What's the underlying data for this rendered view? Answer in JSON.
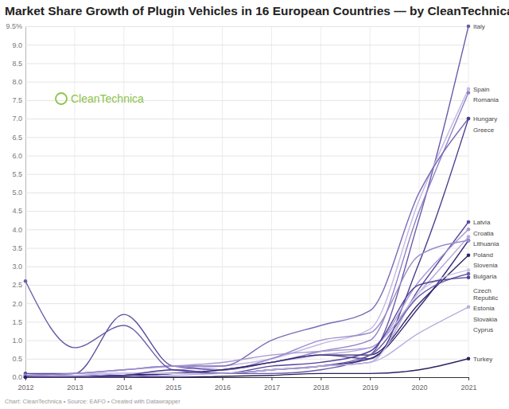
{
  "chart_data": {
    "type": "line",
    "title": "Market Share Growth of Plugin Vehicles in 16 European Countries — by CleanTechnica",
    "source": "Chart: CleanTechnica • Source: EAFO • Created with Datawrapper",
    "annotations": [
      "CleanTechnica"
    ],
    "x": [
      2012,
      2013,
      2014,
      2015,
      2016,
      2017,
      2018,
      2019,
      2020,
      2021
    ],
    "xlim": [
      2012,
      2021
    ],
    "xticks": [
      2012,
      2013,
      2014,
      2015,
      2016,
      2017,
      2018,
      2019,
      2020,
      2021
    ],
    "ylim": [
      0,
      9.5
    ],
    "yticks": [
      {
        "value": 0,
        "label": "0.0"
      },
      0.5,
      {
        "value": 1,
        "label": "1.0"
      },
      1.5,
      {
        "value": 2,
        "label": "2.0"
      },
      2.5,
      {
        "value": 3,
        "label": "3.0"
      },
      3.5,
      {
        "value": 4,
        "label": "4.0"
      },
      4.5,
      {
        "value": 5,
        "label": "5.0"
      },
      5.5,
      {
        "value": 6,
        "label": "6.0"
      },
      6.5,
      {
        "value": 7,
        "label": "7.0"
      },
      7.5,
      {
        "value": 8,
        "label": "8.0"
      },
      8.5,
      {
        "value": 9,
        "label": "9.0"
      },
      {
        "value": 9.5,
        "label": "9.5%"
      }
    ],
    "grid": true,
    "marker": "circle",
    "series": [
      {
        "name": "Italy",
        "color": "#6a5aa8",
        "values": [
          0.05,
          0.1,
          0.1,
          0.1,
          0.1,
          0.1,
          0.2,
          0.6,
          4.3,
          9.5
        ]
      },
      {
        "name": "Spain",
        "color": "#c3b9e3",
        "values": [
          0.05,
          0.1,
          0.1,
          0.2,
          0.3,
          0.5,
          0.9,
          1.3,
          4.8,
          7.8
        ]
      },
      {
        "name": "Romania",
        "color": "#8f81c4",
        "values": [
          0,
          0,
          0,
          0.1,
          0.2,
          0.4,
          0.7,
          1.0,
          4.5,
          7.7
        ]
      },
      {
        "name": "Hungary",
        "color": "#7b6bb6",
        "values": [
          0.05,
          0.1,
          0.2,
          0.3,
          0.3,
          1.0,
          1.4,
          1.8,
          5.0,
          7.0
        ]
      },
      {
        "name": "Greece",
        "color": "#4b3c8c",
        "values": [
          0.05,
          0.05,
          0.05,
          0.1,
          0.1,
          0.2,
          0.3,
          0.4,
          3.1,
          7.0
        ]
      },
      {
        "name": "Latvia",
        "color": "#5a4a9c",
        "values": [
          0.1,
          0.1,
          1.7,
          0.3,
          0.2,
          0.4,
          0.6,
          0.5,
          2.4,
          4.2
        ]
      },
      {
        "name": "Croatia",
        "color": "#a597d3",
        "values": [
          0,
          0.1,
          0.2,
          0.3,
          0.4,
          0.6,
          0.7,
          0.8,
          2.6,
          4.0
        ]
      },
      {
        "name": "Lithuania",
        "color": "#b4a8dc",
        "values": [
          0,
          0,
          0.1,
          0.1,
          0.2,
          0.4,
          0.6,
          0.8,
          2.3,
          3.8
        ]
      },
      {
        "name": "Poland",
        "color": "#3a2d78",
        "values": [
          0,
          0,
          0.05,
          0.1,
          0.1,
          0.2,
          0.3,
          0.5,
          1.9,
          3.7
        ]
      },
      {
        "name": "Slovenia",
        "color": "#9a8ccc",
        "values": [
          0.05,
          0.1,
          0.2,
          0.3,
          0.2,
          0.5,
          1.0,
          1.2,
          3.3,
          3.7
        ]
      },
      {
        "name": "Bulgaria",
        "color": "#2f2468",
        "values": [
          0,
          0,
          0.05,
          0.1,
          0.2,
          0.4,
          0.6,
          0.6,
          2.0,
          3.3
        ]
      },
      {
        "name": "Czech Republic",
        "color": "#cdc5e8",
        "values": [
          0,
          0.05,
          0.1,
          0.1,
          0.1,
          0.2,
          0.3,
          0.4,
          2.3,
          2.9
        ]
      },
      {
        "name": "Estonia",
        "color": "#6d5daa",
        "values": [
          2.6,
          0.8,
          1.4,
          0.2,
          0.1,
          0.2,
          0.3,
          0.6,
          2.2,
          2.8
        ]
      },
      {
        "name": "Slovakia",
        "color": "#514297",
        "values": [
          0,
          0,
          0.05,
          0.2,
          0.1,
          0.3,
          0.4,
          0.7,
          2.5,
          2.7
        ]
      },
      {
        "name": "Cyprus",
        "color": "#b9aee0",
        "values": [
          0,
          0,
          0,
          0.05,
          0.1,
          0.2,
          0.3,
          0.4,
          1.2,
          1.9
        ]
      },
      {
        "name": "Turkey",
        "color": "#2b215f",
        "values": [
          0,
          0,
          0,
          0,
          0.02,
          0.05,
          0.1,
          0.1,
          0.2,
          0.5
        ]
      }
    ]
  }
}
